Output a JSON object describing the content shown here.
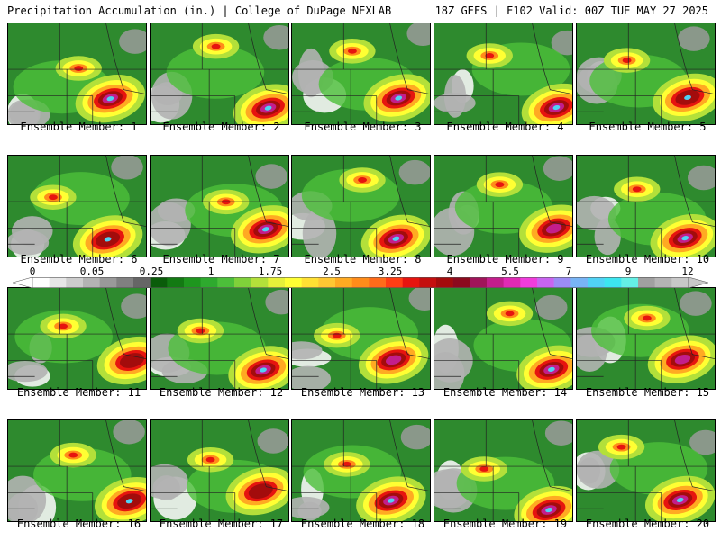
{
  "header": {
    "left": "Precipitation Accumulation (in.) | College of DuPage NEXLAB",
    "right": "18Z GEFS | F102 Valid: 00Z TUE MAY 27 2025"
  },
  "colorbar": {
    "labels": [
      "0",
      "0.05",
      "0.25",
      "1",
      "1.75",
      "2.5",
      "3.25",
      "4",
      "5.5",
      "7",
      "9",
      "12"
    ],
    "colors": [
      "#ffffff",
      "#e6e6e6",
      "#cccccc",
      "#b3b3b3",
      "#999999",
      "#808080",
      "#666666",
      "#0a5c0a",
      "#137a13",
      "#1e961e",
      "#2eaa2e",
      "#4cbf3a",
      "#7fd13a",
      "#b3e03a",
      "#e6f03a",
      "#ffff33",
      "#ffe033",
      "#ffc733",
      "#ffaa22",
      "#ff8c1a",
      "#ff6b1a",
      "#ff3d14",
      "#e6140f",
      "#c40f0f",
      "#a30c0c",
      "#8c0a1e",
      "#a0145a",
      "#c31e8c",
      "#e02ab4",
      "#f03cdc",
      "#c864f0",
      "#9b8cf5",
      "#78b4f5",
      "#50d2f5",
      "#3ce6f0",
      "#64f0e6",
      "#a0a0a0",
      "#b4b4b4",
      "#c8c8c8"
    ]
  },
  "members": [
    {
      "label": "Ensemble Member: 1"
    },
    {
      "label": "Ensemble Member: 2"
    },
    {
      "label": "Ensemble Member: 3"
    },
    {
      "label": "Ensemble Member: 4"
    },
    {
      "label": "Ensemble Member: 5"
    },
    {
      "label": "Ensemble Member: 6"
    },
    {
      "label": "Ensemble Member: 7"
    },
    {
      "label": "Ensemble Member: 8"
    },
    {
      "label": "Ensemble Member: 9"
    },
    {
      "label": "Ensemble Member: 10"
    },
    {
      "label": "Ensemble Member: 11"
    },
    {
      "label": "Ensemble Member: 12"
    },
    {
      "label": "Ensemble Member: 13"
    },
    {
      "label": "Ensemble Member: 14"
    },
    {
      "label": "Ensemble Member: 15"
    },
    {
      "label": "Ensemble Member: 16"
    },
    {
      "label": "Ensemble Member: 17"
    },
    {
      "label": "Ensemble Member: 18"
    },
    {
      "label": "Ensemble Member: 19"
    },
    {
      "label": "Ensemble Member: 20"
    }
  ]
}
